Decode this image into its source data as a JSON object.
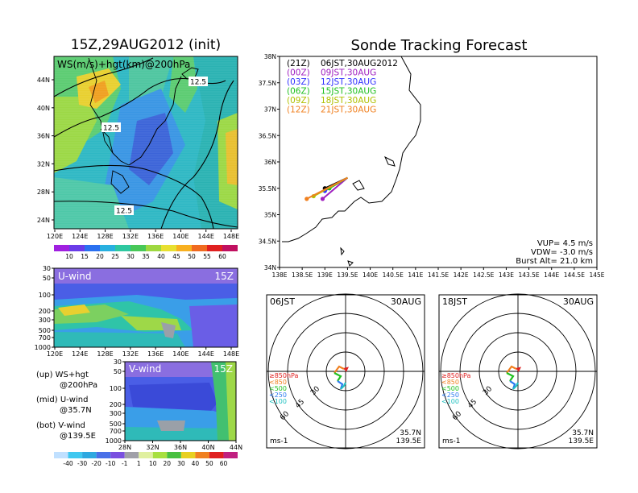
{
  "titles": {
    "left": "15Z,29AUG2012 (init)",
    "right": "Sonde Tracking Forecast"
  },
  "map_panel": {
    "label": "WS(m/s)+hgt(km)@200hPa",
    "x_ticks": [
      "120E",
      "124E",
      "128E",
      "132E",
      "136E",
      "140E",
      "144E",
      "148E"
    ],
    "y_ticks": [
      "44N",
      "40N",
      "36N",
      "32N",
      "28N",
      "24N"
    ],
    "contour_labels": [
      "12.5",
      "12.5",
      "12.5"
    ],
    "colorbar": [
      "10",
      "15",
      "20",
      "25",
      "30",
      "35",
      "40",
      "45",
      "50",
      "55",
      "60"
    ]
  },
  "u_panel": {
    "label": "U-wind",
    "time": "15Z",
    "y_ticks": [
      "30",
      "50",
      "100",
      "200",
      "300",
      "500",
      "700",
      "1000"
    ],
    "x_ticks": [
      "120E",
      "124E",
      "128E",
      "132E",
      "136E",
      "140E",
      "144E",
      "148E"
    ]
  },
  "v_panel": {
    "label": "V-wind",
    "time": "15Z",
    "y_ticks": [
      "30",
      "50",
      "100",
      "200",
      "300",
      "500",
      "700",
      "1000"
    ],
    "x_ticks": [
      "28N",
      "32N",
      "36N",
      "40N",
      "44N"
    ]
  },
  "legend_notes": {
    "up_1": "(up) WS+hgt",
    "up_2": "@200hPa",
    "mid_1": "(mid) U-wind",
    "mid_2": "@35.7N",
    "bot_1": "(bot) V-wind",
    "bot_2": "@139.5E"
  },
  "bottom_colorbar": [
    "-40",
    "-30",
    "-20",
    "-10",
    "-1",
    "1",
    "10",
    "20",
    "30",
    "40",
    "50",
    "60"
  ],
  "track_map": {
    "x_ticks": [
      "138E",
      "138.5E",
      "139E",
      "139.5E",
      "140E",
      "140.5E",
      "141E",
      "141.5E",
      "142E",
      "142.5E",
      "143E",
      "143.5E",
      "144E",
      "144.5E",
      "145E"
    ],
    "y_ticks": [
      "38N",
      "37.5N",
      "37N",
      "36.5N",
      "36N",
      "35.5N",
      "35N",
      "34.5N",
      "34N"
    ],
    "launch_times": [
      {
        "utc": "(21Z)",
        "jst": "06JST,30AUG2012",
        "color": "#000000"
      },
      {
        "utc": "(00Z)",
        "jst": "09JST,30AUG",
        "color": "#a020c0"
      },
      {
        "utc": "(03Z)",
        "jst": "12JST,30AUG",
        "color": "#3030ff"
      },
      {
        "utc": "(06Z)",
        "jst": "15JST,30AUG",
        "color": "#20c020"
      },
      {
        "utc": "(09Z)",
        "jst": "18JST,30AUG",
        "color": "#b0c000"
      },
      {
        "utc": "(12Z)",
        "jst": "21JST,30AUG",
        "color": "#f08020"
      }
    ],
    "params": {
      "vup": "VUP= 4.5 m/s",
      "vdw": "VDW= -3.0 m/s",
      "burst": "Burst Alt= 21.0 km"
    }
  },
  "hodographs": [
    {
      "time": "06JST",
      "date": "30AUG",
      "loc1": "35.7N",
      "loc2": "139.5E",
      "unit": "ms-1",
      "legend": [
        "≥850hPa",
        "<850",
        "<500",
        "<250",
        "<100"
      ],
      "ring_labels": [
        "30",
        "45",
        "60"
      ]
    },
    {
      "time": "18JST",
      "date": "30AUG",
      "loc1": "35.7N",
      "loc2": "139.5E",
      "unit": "ms-1",
      "legend": [
        "≥850hPa",
        "<850",
        "<500",
        "<250",
        "<100"
      ],
      "ring_labels": [
        "30",
        "45",
        "60"
      ]
    }
  ],
  "chart_data": [
    {
      "type": "heatmap",
      "title": "WS(m/s)+hgt(km)@200hPa",
      "x_range": [
        "120E",
        "150E"
      ],
      "y_range": [
        "22N",
        "48N"
      ],
      "contour_value_km": 12.5,
      "colorbar_values": [
        10,
        15,
        20,
        25,
        30,
        35,
        40,
        45,
        50,
        55,
        60
      ]
    },
    {
      "type": "line",
      "title": "Sonde Tracking Forecast",
      "xlim": [
        138,
        145
      ],
      "ylim": [
        34,
        38
      ],
      "series": [
        {
          "name": "06JST,30AUG2012",
          "x": [
            139.5,
            139.0
          ],
          "y": [
            35.7,
            35.5
          ]
        },
        {
          "name": "09JST,30AUG",
          "x": [
            139.5,
            138.95
          ],
          "y": [
            35.7,
            35.3
          ]
        },
        {
          "name": "12JST,30AUG",
          "x": [
            139.5,
            139.0
          ],
          "y": [
            35.7,
            35.45
          ]
        },
        {
          "name": "15JST,30AUG",
          "x": [
            139.5,
            139.1
          ],
          "y": [
            35.7,
            35.5
          ]
        },
        {
          "name": "18JST,30AUG",
          "x": [
            139.5,
            138.75
          ],
          "y": [
            35.7,
            35.35
          ]
        },
        {
          "name": "21JST,30AUG",
          "x": [
            139.5,
            138.6
          ],
          "y": [
            35.7,
            35.3
          ]
        }
      ]
    }
  ]
}
